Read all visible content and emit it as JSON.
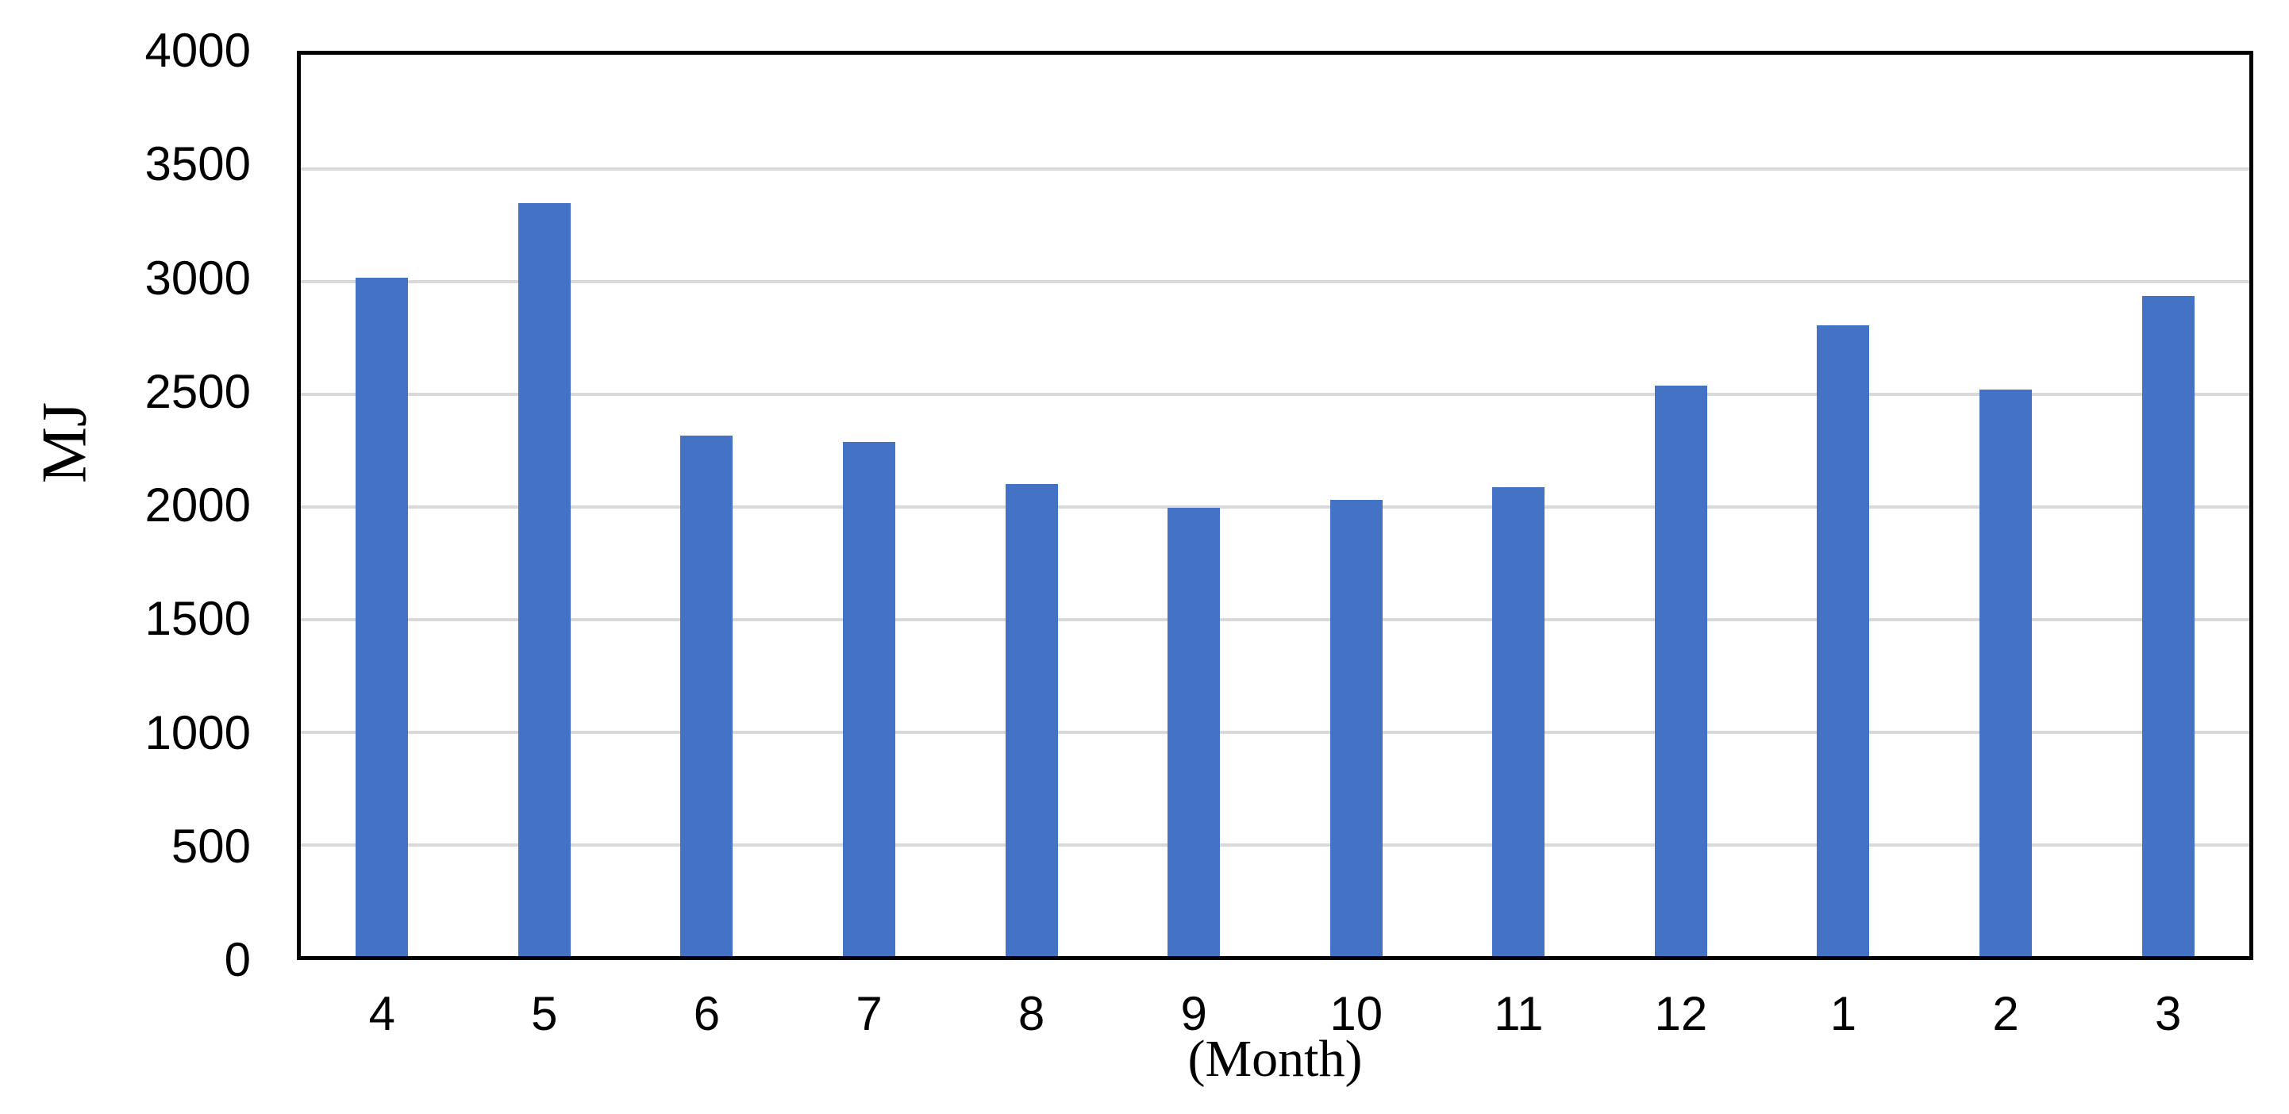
{
  "chart_data": {
    "type": "bar",
    "title": "",
    "categories": [
      "4",
      "5",
      "6",
      "7",
      "8",
      "9",
      "10",
      "11",
      "12",
      "1",
      "2",
      "3"
    ],
    "values": [
      3010,
      3340,
      2310,
      2280,
      2095,
      1990,
      2025,
      2080,
      2530,
      2800,
      2515,
      2930
    ],
    "xlabel": "(Month)",
    "ylabel": "MJ",
    "ylim": [
      0,
      4000
    ],
    "yticks": [
      0,
      500,
      1000,
      1500,
      2000,
      2500,
      3000,
      3500,
      4000
    ],
    "grid": true,
    "legend_position": "none",
    "colors": {
      "bar": "#4472C4",
      "gridline": "#D9D9D9",
      "axis_border": "#000000",
      "background": "#FFFFFF",
      "text": "#000000"
    }
  }
}
